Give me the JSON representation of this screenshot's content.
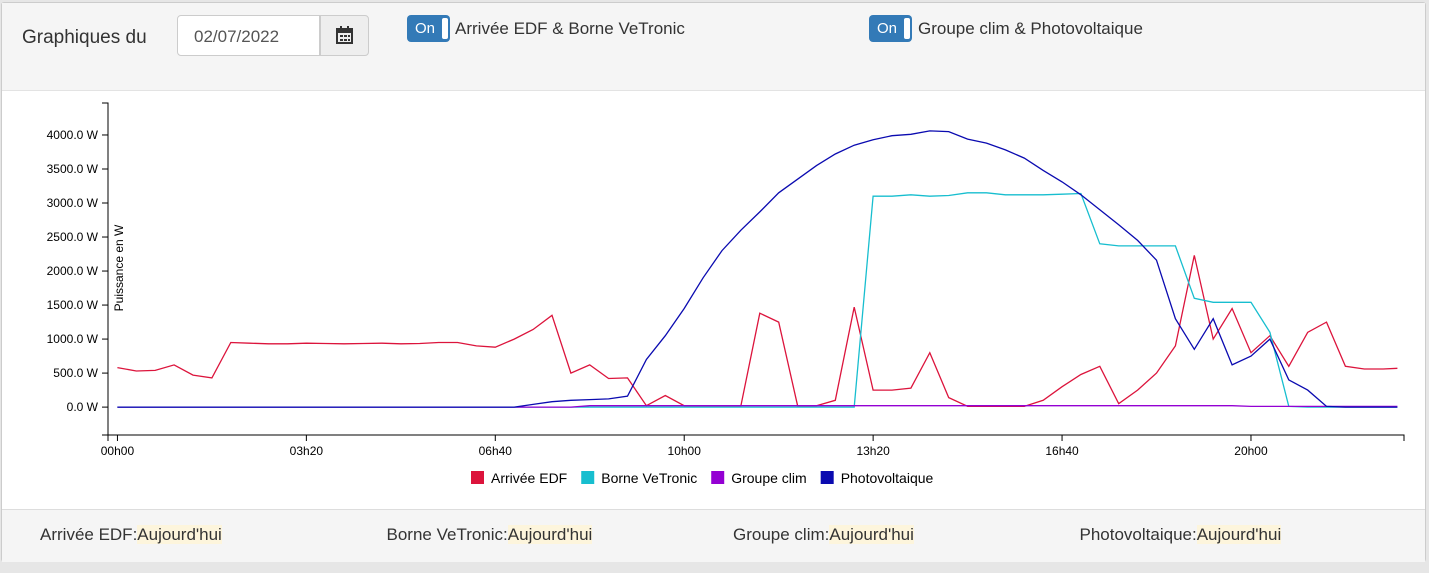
{
  "header": {
    "label": "Graphiques du",
    "date": "02/07/2022",
    "toggles": [
      {
        "state": "On",
        "label": "Arrivée EDF & Borne VeTronic"
      },
      {
        "state": "On",
        "label": "Groupe clim & Photovoltaique"
      }
    ]
  },
  "chart_data": {
    "type": "line",
    "y_label": "Puissance en W",
    "x": [
      0,
      20,
      40,
      60,
      80,
      100,
      120,
      140,
      160,
      180,
      200,
      220,
      240,
      260,
      280,
      300,
      320,
      340,
      360,
      380,
      400,
      420,
      440,
      460,
      480,
      500,
      520,
      540,
      560,
      580,
      600,
      620,
      640,
      660,
      680,
      700,
      720,
      740,
      760,
      780,
      800,
      820,
      840,
      860,
      880,
      900,
      920,
      940,
      960,
      980,
      1000,
      1020,
      1040,
      1060,
      1080,
      1100,
      1120,
      1140,
      1160,
      1180,
      1200,
      1220,
      1240,
      1260,
      1280,
      1300,
      1320,
      1340,
      1355
    ],
    "xlim": [
      -10,
      1362
    ],
    "xticks": [
      {
        "value": 0,
        "label": "00h00"
      },
      {
        "value": 200,
        "label": "03h20"
      },
      {
        "value": 400,
        "label": "06h40"
      },
      {
        "value": 600,
        "label": "10h00"
      },
      {
        "value": 800,
        "label": "13h20"
      },
      {
        "value": 1000,
        "label": "16h40"
      },
      {
        "value": 1200,
        "label": "20h00"
      }
    ],
    "ylim": [
      -410,
      4470
    ],
    "yticks": [
      {
        "value": 0,
        "label": "0.0 W"
      },
      {
        "value": 500,
        "label": "500.0 W"
      },
      {
        "value": 1000,
        "label": "1000.0 W"
      },
      {
        "value": 1500,
        "label": "1500.0 W"
      },
      {
        "value": 2000,
        "label": "2000.0 W"
      },
      {
        "value": 2500,
        "label": "2500.0 W"
      },
      {
        "value": 3000,
        "label": "3000.0 W"
      },
      {
        "value": 3500,
        "label": "3500.0 W"
      },
      {
        "value": 4000,
        "label": "4000.0 W"
      }
    ],
    "series": [
      {
        "name": "Arrivée EDF",
        "color": "#dc143c",
        "values": [
          580,
          530,
          540,
          620,
          470,
          430,
          950,
          940,
          930,
          930,
          940,
          935,
          930,
          935,
          940,
          930,
          935,
          950,
          950,
          900,
          880,
          1000,
          1140,
          1350,
          500,
          620,
          420,
          430,
          20,
          170,
          20,
          20,
          20,
          20,
          1380,
          1250,
          20,
          20,
          100,
          1470,
          250,
          250,
          280,
          800,
          140,
          10,
          10,
          10,
          10,
          100,
          300,
          480,
          600,
          50,
          250,
          500,
          900,
          2230,
          1000,
          1450,
          800,
          1050,
          600,
          1100,
          1250,
          600,
          560,
          560,
          570
        ]
      },
      {
        "name": "Borne VeTronic",
        "color": "#17becf",
        "values": [
          0,
          0,
          0,
          0,
          0,
          0,
          0,
          0,
          0,
          0,
          0,
          0,
          0,
          0,
          0,
          0,
          0,
          0,
          0,
          0,
          0,
          0,
          0,
          0,
          0,
          0,
          0,
          0,
          0,
          0,
          0,
          0,
          0,
          0,
          0,
          0,
          0,
          0,
          0,
          0,
          3100,
          3100,
          3120,
          3100,
          3110,
          3150,
          3150,
          3120,
          3120,
          3120,
          3130,
          3140,
          2400,
          2370,
          2370,
          2370,
          2370,
          1600,
          1540,
          1540,
          1540,
          1100,
          10,
          0,
          0,
          0,
          0,
          0,
          0
        ]
      },
      {
        "name": "Groupe clim",
        "color": "#9400d3",
        "values": [
          0,
          0,
          0,
          0,
          0,
          0,
          0,
          0,
          0,
          0,
          0,
          0,
          0,
          0,
          0,
          0,
          0,
          0,
          0,
          0,
          0,
          0,
          0,
          0,
          0,
          20,
          20,
          20,
          20,
          20,
          20,
          20,
          20,
          20,
          20,
          20,
          20,
          20,
          20,
          20,
          20,
          20,
          20,
          20,
          20,
          20,
          20,
          20,
          20,
          20,
          20,
          20,
          20,
          20,
          20,
          20,
          20,
          20,
          20,
          20,
          10,
          10,
          10,
          10,
          10,
          10,
          10,
          10,
          10
        ]
      },
      {
        "name": "Photovoltaique",
        "color": "#0a0ab0",
        "values": [
          0,
          0,
          0,
          0,
          0,
          0,
          0,
          0,
          0,
          0,
          0,
          0,
          0,
          0,
          0,
          0,
          0,
          0,
          0,
          0,
          0,
          0,
          40,
          80,
          100,
          110,
          120,
          160,
          700,
          1050,
          1450,
          1900,
          2300,
          2600,
          2870,
          3150,
          3350,
          3550,
          3720,
          3850,
          3930,
          3990,
          4010,
          4060,
          4050,
          3940,
          3880,
          3780,
          3660,
          3480,
          3310,
          3120,
          2900,
          2680,
          2450,
          2160,
          1300,
          850,
          1300,
          620,
          750,
          1000,
          400,
          250,
          10,
          0,
          0,
          0,
          0
        ]
      }
    ]
  },
  "footer": {
    "items": [
      {
        "name": "Arrivée EDF:",
        "value": "Aujourd'hui"
      },
      {
        "name": "Borne VeTronic:",
        "value": "Aujourd'hui"
      },
      {
        "name": "Groupe clim:",
        "value": "Aujourd'hui"
      },
      {
        "name": "Photovoltaique:",
        "value": "Aujourd'hui"
      }
    ]
  }
}
